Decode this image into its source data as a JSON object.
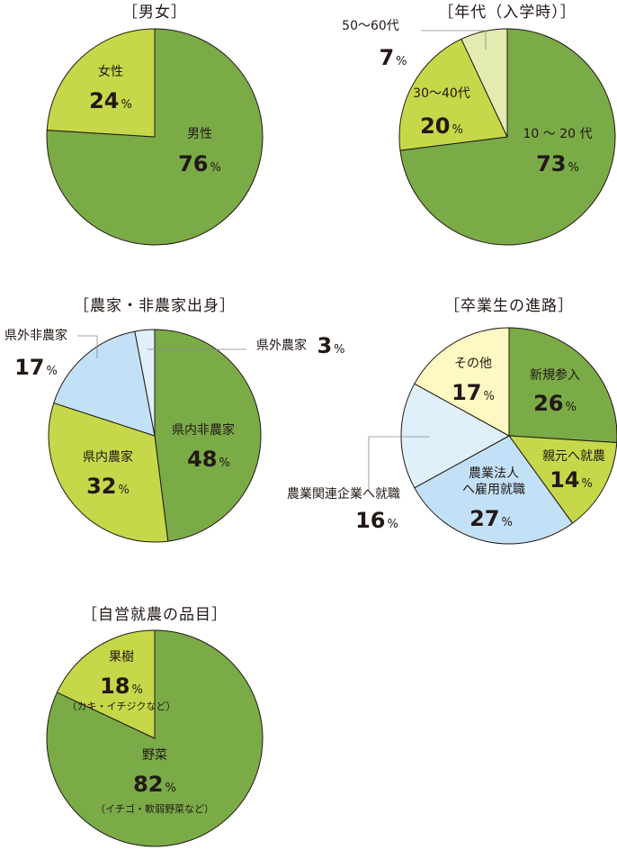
{
  "colors": {
    "dark_green": "#7aab47",
    "light_green": "#c6d849",
    "pale_green": "#e4ebb0",
    "light_blue": "#c2e1f7",
    "pale_blue": "#dff0fb",
    "cream": "#fff8c2"
  },
  "chart_data": [
    {
      "type": "pie",
      "title": "［男女］",
      "slices": [
        {
          "label": "男性",
          "value": 76,
          "value_text": "76",
          "unit": "%",
          "color": "#7aab47"
        },
        {
          "label": "女性",
          "value": 24,
          "value_text": "24",
          "unit": "%",
          "color": "#c6d849"
        }
      ]
    },
    {
      "type": "pie",
      "title": "［年代（入学時）］",
      "slices": [
        {
          "label": "10 ～ 20 代",
          "value": 73,
          "value_text": "73",
          "unit": "%",
          "color": "#7aab47"
        },
        {
          "label": "30～40代",
          "value": 20,
          "value_text": "20",
          "unit": "%",
          "color": "#c6d849"
        },
        {
          "label": "50～60代",
          "value": 7,
          "value_text": "7",
          "unit": "%",
          "color": "#e4ebb0"
        }
      ]
    },
    {
      "type": "pie",
      "title": "［農家・非農家出身］",
      "slices": [
        {
          "label": "県内非農家",
          "value": 48,
          "value_text": "48",
          "unit": "%",
          "color": "#7aab47"
        },
        {
          "label": "県内農家",
          "value": 32,
          "value_text": "32",
          "unit": "%",
          "color": "#c6d849"
        },
        {
          "label": "県外非農家",
          "value": 17,
          "value_text": "17",
          "unit": "%",
          "color": "#c2e1f7"
        },
        {
          "label": "県外農家",
          "value": 3,
          "value_text": "3",
          "unit": "%",
          "color": "#dff0fb"
        }
      ]
    },
    {
      "type": "pie",
      "title": "［卒業生の進路］",
      "slices": [
        {
          "label": "新規参入",
          "value": 26,
          "value_text": "26",
          "unit": "%",
          "color": "#7aab47"
        },
        {
          "label": "親元へ就農",
          "value": 14,
          "value_text": "14",
          "unit": "%",
          "color": "#c6d849"
        },
        {
          "label": "農業法人\nへ雇用就職",
          "value": 27,
          "value_text": "27",
          "unit": "%",
          "color": "#c2e1f7"
        },
        {
          "label": "農業関連企業へ就職",
          "value": 16,
          "value_text": "16",
          "unit": "%",
          "color": "#dff0fb"
        },
        {
          "label": "その他",
          "value": 17,
          "value_text": "17",
          "unit": "%",
          "color": "#fff8c2"
        }
      ]
    },
    {
      "type": "pie",
      "title": "［自営就農の品目］",
      "slices": [
        {
          "label": "野菜",
          "value": 82,
          "value_text": "82",
          "unit": "%",
          "note": "（イチゴ・軟弱野菜など）",
          "color": "#7aab47"
        },
        {
          "label": "果樹",
          "value": 18,
          "value_text": "18",
          "unit": "%",
          "note": "（カキ・イチジクなど）",
          "color": "#c6d849"
        }
      ]
    }
  ]
}
